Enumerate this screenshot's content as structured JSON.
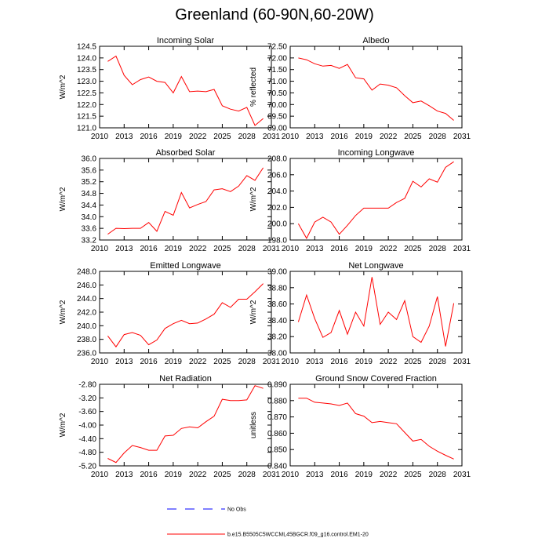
{
  "title": "Greenland (60-90N,60-20W)",
  "colors": {
    "model": "#ff0000",
    "obs": "#0000ff",
    "axis": "#000000"
  },
  "legend": {
    "obs_label": "No Obs",
    "model_label": "b.e15.B5505C5WCCML45BGCR.f09_g16.control.EM1-20"
  },
  "chart_data": [
    {
      "type": "line",
      "title": "Incoming Solar",
      "ylabel": "W/m^2",
      "xlim": [
        2010,
        2031
      ],
      "xticks": [
        2010,
        2013,
        2016,
        2019,
        2022,
        2025,
        2028,
        2031
      ],
      "ylim": [
        121.0,
        124.5
      ],
      "yticks": [
        "121.0",
        "121.5",
        "122.0",
        "122.5",
        "123.0",
        "123.5",
        "124.0",
        "124.5"
      ],
      "x": [
        2011,
        2012,
        2013,
        2014,
        2015,
        2016,
        2017,
        2018,
        2019,
        2020,
        2021,
        2022,
        2023,
        2024,
        2025,
        2026,
        2027,
        2028,
        2029,
        2030
      ],
      "values": [
        123.85,
        124.08,
        123.25,
        122.85,
        123.07,
        123.18,
        123.0,
        122.95,
        122.5,
        123.2,
        122.55,
        122.58,
        122.55,
        122.65,
        121.95,
        121.8,
        121.72,
        121.88,
        121.1,
        121.4
      ]
    },
    {
      "type": "line",
      "title": "Albedo",
      "ylabel": "% reflected",
      "xlim": [
        2010,
        2031
      ],
      "xticks": [
        2010,
        2013,
        2016,
        2019,
        2022,
        2025,
        2028,
        2031
      ],
      "ylim": [
        69.0,
        72.5
      ],
      "yticks": [
        "69.00",
        "69.50",
        "70.00",
        "70.50",
        "71.00",
        "71.50",
        "72.00",
        "72.50"
      ],
      "x": [
        2011,
        2012,
        2013,
        2014,
        2015,
        2016,
        2017,
        2018,
        2019,
        2020,
        2021,
        2022,
        2023,
        2024,
        2025,
        2026,
        2027,
        2028,
        2029,
        2030
      ],
      "values": [
        72.0,
        71.92,
        71.75,
        71.65,
        71.68,
        71.55,
        71.72,
        71.15,
        71.1,
        70.62,
        70.88,
        70.83,
        70.72,
        70.38,
        70.08,
        70.15,
        69.95,
        69.72,
        69.62,
        69.32
      ]
    },
    {
      "type": "line",
      "title": "Absorbed Solar",
      "ylabel": "W/m^2",
      "xlim": [
        2010,
        2031
      ],
      "xticks": [
        2010,
        2013,
        2016,
        2019,
        2022,
        2025,
        2028,
        2031
      ],
      "ylim": [
        33.2,
        36.0
      ],
      "yticks": [
        "33.2",
        "33.6",
        "34.0",
        "34.4",
        "34.8",
        "35.2",
        "35.6",
        "36.0"
      ],
      "x": [
        2011,
        2012,
        2013,
        2014,
        2015,
        2016,
        2017,
        2018,
        2019,
        2020,
        2021,
        2022,
        2023,
        2024,
        2025,
        2026,
        2027,
        2028,
        2029,
        2030
      ],
      "values": [
        33.4,
        33.6,
        33.59,
        33.6,
        33.6,
        33.8,
        33.5,
        34.18,
        34.05,
        34.83,
        34.3,
        34.42,
        34.52,
        34.92,
        34.96,
        34.86,
        35.05,
        35.41,
        35.25,
        35.68
      ]
    },
    {
      "type": "line",
      "title": "Incoming Longwave",
      "ylabel": "W/m^2",
      "xlim": [
        2010,
        2031
      ],
      "xticks": [
        2010,
        2013,
        2016,
        2019,
        2022,
        2025,
        2028,
        2031
      ],
      "ylim": [
        198.0,
        208.0
      ],
      "yticks": [
        "198.0",
        "200.0",
        "202.0",
        "204.0",
        "206.0",
        "208.0"
      ],
      "x": [
        2011,
        2012,
        2013,
        2014,
        2015,
        2016,
        2017,
        2018,
        2019,
        2020,
        2021,
        2022,
        2023,
        2024,
        2025,
        2026,
        2027,
        2028,
        2029,
        2030
      ],
      "values": [
        200.0,
        198.2,
        200.2,
        200.8,
        200.2,
        198.7,
        199.8,
        201.0,
        201.9,
        201.9,
        201.9,
        201.9,
        202.6,
        203.1,
        205.2,
        204.5,
        205.5,
        205.1,
        206.9,
        207.6
      ]
    },
    {
      "type": "line",
      "title": "Emitted Longwave",
      "ylabel": "W/m^2",
      "xlim": [
        2010,
        2031
      ],
      "xticks": [
        2010,
        2013,
        2016,
        2019,
        2022,
        2025,
        2028,
        2031
      ],
      "ylim": [
        236.0,
        248.0
      ],
      "yticks": [
        "236.0",
        "238.0",
        "240.0",
        "242.0",
        "244.0",
        "246.0",
        "248.0"
      ],
      "x": [
        2011,
        2012,
        2013,
        2014,
        2015,
        2016,
        2017,
        2018,
        2019,
        2020,
        2021,
        2022,
        2023,
        2024,
        2025,
        2026,
        2027,
        2028,
        2029,
        2030
      ],
      "values": [
        238.5,
        236.9,
        238.7,
        239.0,
        238.6,
        237.2,
        237.9,
        239.6,
        240.3,
        240.8,
        240.3,
        240.4,
        241.0,
        241.7,
        243.4,
        242.7,
        243.9,
        243.9,
        245.0,
        246.2
      ]
    },
    {
      "type": "line",
      "title": "Net Longwave",
      "ylabel": "W/m^2",
      "xlim": [
        2010,
        2031
      ],
      "xticks": [
        2010,
        2013,
        2016,
        2019,
        2022,
        2025,
        2028,
        2031
      ],
      "ylim": [
        38.0,
        39.0
      ],
      "yticks": [
        "38.00",
        "38.20",
        "38.40",
        "38.60",
        "38.80",
        "39.00"
      ],
      "x": [
        2011,
        2012,
        2013,
        2014,
        2015,
        2016,
        2017,
        2018,
        2019,
        2020,
        2021,
        2022,
        2023,
        2024,
        2025,
        2026,
        2027,
        2028,
        2029,
        2030
      ],
      "values": [
        38.38,
        38.71,
        38.42,
        38.19,
        38.25,
        38.52,
        38.23,
        38.5,
        38.33,
        38.93,
        38.35,
        38.5,
        38.41,
        38.64,
        38.2,
        38.13,
        38.33,
        38.69,
        38.08,
        38.61
      ]
    },
    {
      "type": "line",
      "title": "Net Radiation",
      "ylabel": "W/m^2",
      "xlim": [
        2010,
        2031
      ],
      "xticks": [
        2010,
        2013,
        2016,
        2019,
        2022,
        2025,
        2028,
        2031
      ],
      "ylim": [
        -5.2,
        -2.8
      ],
      "yticks": [
        "-5.20",
        "-4.80",
        "-4.40",
        "-4.00",
        "-3.60",
        "-3.20",
        "-2.80"
      ],
      "x": [
        2011,
        2012,
        2013,
        2014,
        2015,
        2016,
        2017,
        2018,
        2019,
        2020,
        2021,
        2022,
        2023,
        2024,
        2025,
        2026,
        2027,
        2028,
        2029,
        2030
      ],
      "values": [
        -4.98,
        -5.1,
        -4.82,
        -4.6,
        -4.66,
        -4.74,
        -4.74,
        -4.32,
        -4.3,
        -4.1,
        -4.05,
        -4.08,
        -3.9,
        -3.74,
        -3.24,
        -3.28,
        -3.28,
        -3.26,
        -2.84,
        -2.92
      ]
    },
    {
      "type": "line",
      "title": "Ground Snow Covered Fraction",
      "ylabel": "unitless",
      "xlim": [
        2010,
        2031
      ],
      "xticks": [
        2010,
        2013,
        2016,
        2019,
        2022,
        2025,
        2028,
        2031
      ],
      "ylim": [
        0.84,
        0.89
      ],
      "yticks": [
        "0.840",
        "0.850",
        "0.860",
        "0.870",
        "0.880",
        "0.890"
      ],
      "x": [
        2011,
        2012,
        2013,
        2014,
        2015,
        2016,
        2017,
        2018,
        2019,
        2020,
        2021,
        2022,
        2023,
        2024,
        2025,
        2026,
        2027,
        2028,
        2029,
        2030
      ],
      "values": [
        0.8815,
        0.8815,
        0.879,
        0.8785,
        0.878,
        0.877,
        0.8785,
        0.872,
        0.8705,
        0.8665,
        0.8672,
        0.8665,
        0.8658,
        0.8605,
        0.8552,
        0.8562,
        0.852,
        0.849,
        0.8465,
        0.8442
      ]
    }
  ]
}
